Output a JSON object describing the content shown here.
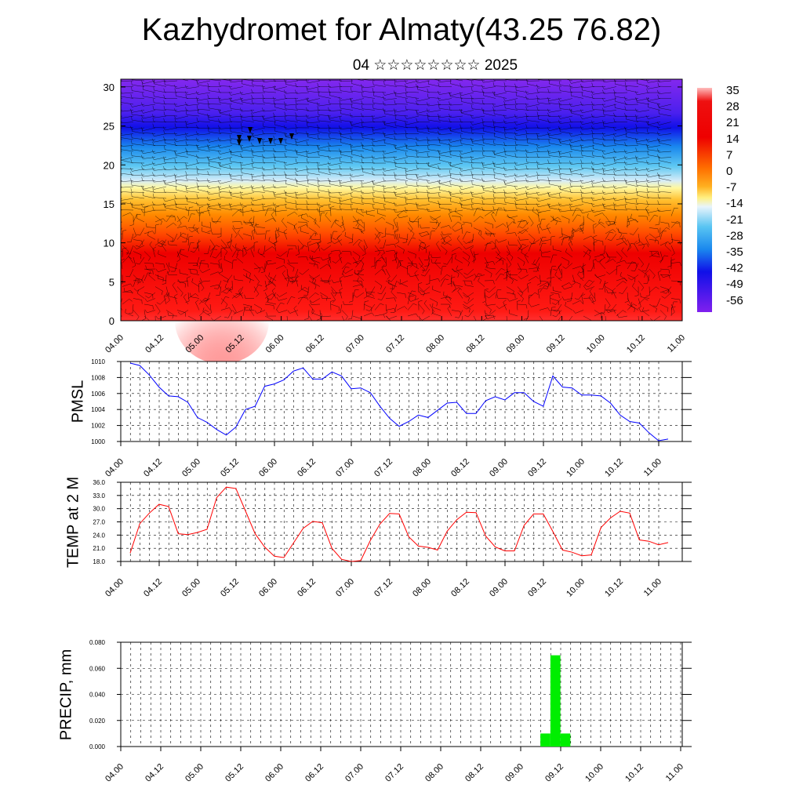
{
  "title": "Kazhydromet for Almaty(43.25 76.82)",
  "subtitle": "04 ☆☆☆☆☆☆☆☆ 2025",
  "colors": {
    "pmsl_line": "#0000ff",
    "temp_line": "#ff0000",
    "precip_bar": "#00ee00"
  },
  "chart_data": [
    {
      "type": "heatmap",
      "title": "",
      "ylabel": "",
      "y_ticks": [
        0,
        5,
        10,
        15,
        20,
        25,
        30
      ],
      "ylim": [
        0,
        31
      ],
      "x_ticks": [
        "04.00",
        "04.12",
        "05.00",
        "05.12",
        "06.00",
        "06.12",
        "07.00",
        "07.12",
        "08.00",
        "08.12",
        "09.00",
        "09.12",
        "10.00",
        "10.12",
        "11.00"
      ],
      "colorbar_labels": [
        "35",
        "28",
        "21",
        "14",
        "7",
        "0",
        "-7",
        "-14",
        "-21",
        "-28",
        "-35",
        "-42",
        "-49",
        "-56"
      ],
      "overlay": "wind barbs",
      "freezing_level_approx": 17
    },
    {
      "type": "line",
      "ylabel": "PMSL",
      "ylim": [
        1000,
        1010
      ],
      "y_ticks": [
        "1000",
        "1002",
        "1004",
        "1006",
        "1008",
        "1010"
      ],
      "x_ticks": [
        "04.00",
        "04.12",
        "05.00",
        "05.12",
        "06.00",
        "06.12",
        "07.00",
        "07.12",
        "08.00",
        "08.12",
        "09.00",
        "09.12",
        "10.00",
        "10.12",
        "11.00"
      ],
      "x_step_hours": 3,
      "series": [
        {
          "values": [
            1009.8,
            1009.5,
            1008.3,
            1006.8,
            1005.7,
            1005.6,
            1004.9,
            1003.0,
            1002.4,
            1001.5,
            1000.8,
            1001.8,
            1004.0,
            1004.4,
            1006.9,
            1007.2,
            1007.7,
            1008.8,
            1009.2,
            1007.8,
            1007.8,
            1008.7,
            1008.2,
            1006.6,
            1006.7,
            1006.1,
            1004.4,
            1002.9,
            1001.9,
            1002.5,
            1003.3,
            1003.0,
            1003.9,
            1004.8,
            1004.9,
            1003.5,
            1003.5,
            1005.1,
            1005.6,
            1005.2,
            1006.1,
            1006.1,
            1005.0,
            1004.4,
            1008.2,
            1006.8,
            1006.7,
            1005.8,
            1005.8,
            1005.7,
            1004.8,
            1003.3,
            1002.5,
            1002.3,
            1001.1,
            1000.1,
            1000.3
          ]
        }
      ]
    },
    {
      "type": "line",
      "ylabel": "TEMP at 2 M",
      "ylim": [
        18,
        36
      ],
      "y_ticks": [
        "18.0",
        "21.0",
        "24.0",
        "27.0",
        "30.0",
        "33.0",
        "36.0"
      ],
      "x_ticks": [
        "04.00",
        "04.12",
        "05.00",
        "05.12",
        "06.00",
        "06.12",
        "07.00",
        "07.12",
        "08.00",
        "08.12",
        "09.00",
        "09.12",
        "10.00",
        "10.12",
        "11.00"
      ],
      "x_step_hours": 3,
      "series": [
        {
          "values": [
            19.9,
            26.6,
            29.0,
            31.0,
            30.5,
            24.3,
            24.1,
            24.6,
            25.3,
            32.5,
            34.9,
            34.6,
            29.5,
            24.3,
            21.3,
            19.2,
            18.9,
            22.2,
            25.5,
            27.1,
            26.8,
            21.0,
            18.5,
            18.0,
            18.2,
            22.8,
            26.5,
            28.9,
            28.8,
            23.6,
            21.5,
            21.2,
            20.6,
            24.9,
            27.5,
            29.2,
            29.1,
            23.8,
            21.3,
            20.4,
            20.4,
            26.2,
            28.8,
            28.8,
            24.8,
            20.6,
            20.1,
            19.3,
            19.5,
            25.7,
            27.9,
            29.4,
            29.0,
            22.9,
            22.6,
            21.8,
            22.3
          ]
        }
      ]
    },
    {
      "type": "bar",
      "ylabel": "PRECIP, mm",
      "ylim": [
        0,
        0.08
      ],
      "y_ticks": [
        "0.000",
        "0.020",
        "0.040",
        "0.060",
        "0.080"
      ],
      "x_ticks": [
        "04.00",
        "04.12",
        "05.00",
        "05.12",
        "06.00",
        "06.12",
        "07.00",
        "07.12",
        "08.00",
        "08.12",
        "09.00",
        "09.12",
        "10.00",
        "10.12",
        "11.00"
      ],
      "x_step_hours": 3,
      "bars": [
        {
          "x": "09.06",
          "value": 0.01
        },
        {
          "x": "09.09",
          "value": 0.07
        },
        {
          "x": "09.12",
          "value": 0.01
        }
      ]
    }
  ]
}
